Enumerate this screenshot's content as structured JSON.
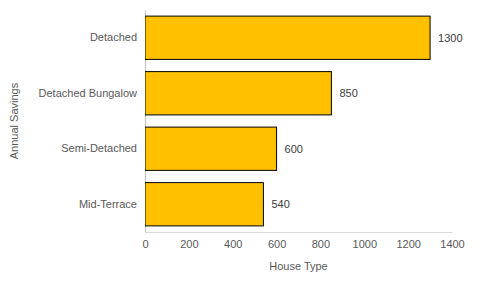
{
  "chart_data": {
    "type": "bar",
    "orientation": "horizontal",
    "x_label": "House Type",
    "y_label": "Annual Savings",
    "categories": [
      "Detached",
      "Detached Bungalow",
      "Semi-Detached",
      "Mid-Terrace"
    ],
    "values": [
      1300,
      850,
      600,
      540
    ],
    "color": "#ffc000",
    "xlim": [
      0,
      1400
    ],
    "xticks": [
      0,
      200,
      400,
      600,
      800,
      1000,
      1200,
      1400
    ],
    "grid": false,
    "data_labels": true
  }
}
